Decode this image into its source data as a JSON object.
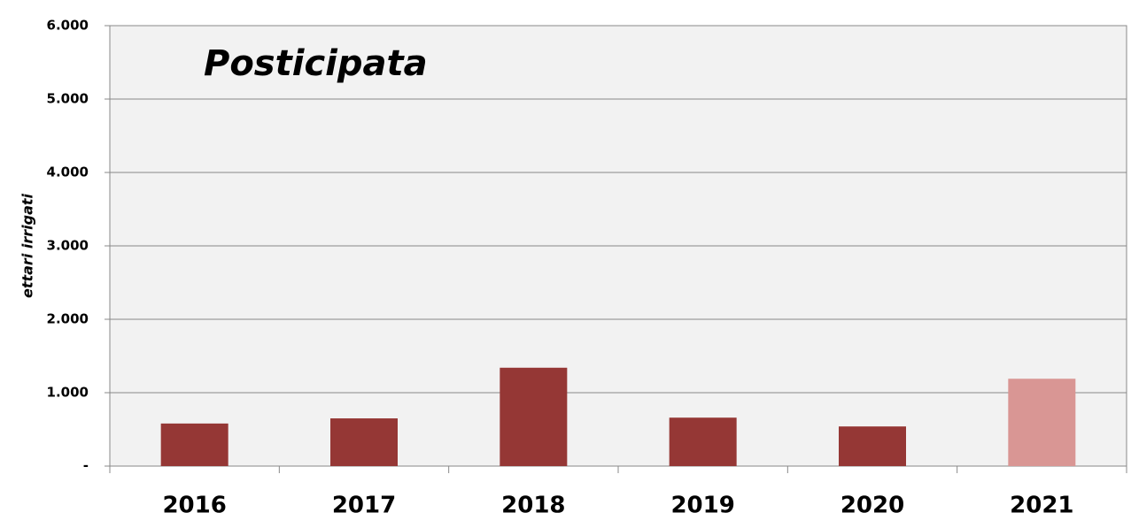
{
  "chart_data": {
    "type": "bar",
    "title": "Posticipata",
    "y_label": "ettari irrigati",
    "categories": [
      "2016",
      "2017",
      "2018",
      "2019",
      "2020",
      "2021"
    ],
    "values": [
      580,
      650,
      1340,
      660,
      540,
      1190
    ],
    "colors": [
      "#953735",
      "#953735",
      "#953735",
      "#953735",
      "#953735",
      "#d99694"
    ],
    "ylim": [
      0,
      6000
    ],
    "yticks": [
      {
        "value": 0,
        "label": "-"
      },
      {
        "value": 1000,
        "label": "1.000"
      },
      {
        "value": 2000,
        "label": "2.000"
      },
      {
        "value": 3000,
        "label": "3.000"
      },
      {
        "value": 4000,
        "label": "4.000"
      },
      {
        "value": 5000,
        "label": "5.000"
      },
      {
        "value": 6000,
        "label": "6.000"
      }
    ],
    "grid": true
  }
}
